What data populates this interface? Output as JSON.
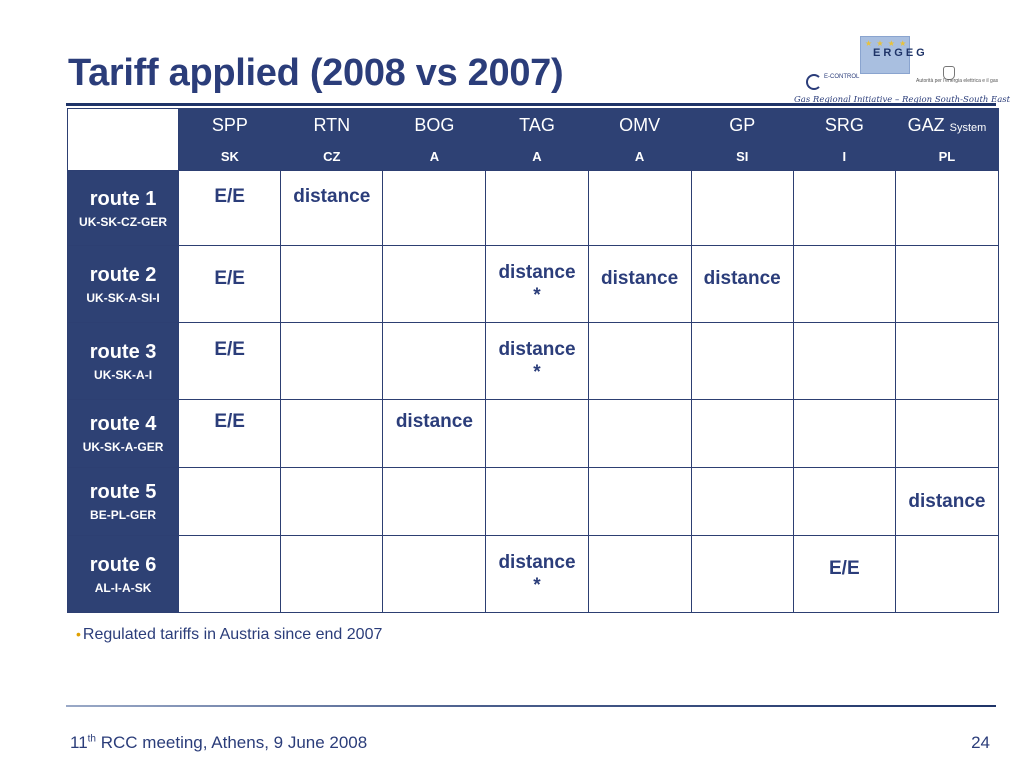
{
  "title": "Tariff applied (2008 vs 2007)",
  "logo": {
    "ergeg": "ERGEG",
    "econtrol": "E-CONTROL",
    "authority": "Autorità per l'energia elettrica e il gas",
    "gri": "Gas Regional Initiative – Region South-South East"
  },
  "columns": [
    {
      "name": "SPP",
      "country": "SK"
    },
    {
      "name": "RTN",
      "country": "CZ"
    },
    {
      "name": "BOG",
      "country": "A"
    },
    {
      "name": "TAG",
      "country": "A"
    },
    {
      "name": "OMV",
      "country": "A"
    },
    {
      "name": "GP",
      "country": "SI"
    },
    {
      "name": "SRG",
      "country": "I"
    },
    {
      "name": "GAZ",
      "suffix": "System",
      "country": "PL"
    }
  ],
  "routes": [
    {
      "name": "route 1",
      "path": "UK-SK-CZ-GER",
      "cells": [
        "E/E",
        "distance",
        "",
        "",
        "",
        "",
        "",
        ""
      ]
    },
    {
      "name": "route 2",
      "path": "UK-SK-A-SI-I",
      "cells": [
        "E/E",
        "",
        "",
        "distance\n*",
        "distance",
        "distance",
        "",
        ""
      ]
    },
    {
      "name": "route 3",
      "path": "UK-SK-A-I",
      "cells": [
        "E/E",
        "",
        "",
        "distance\n*",
        "",
        "",
        "",
        ""
      ]
    },
    {
      "name": "route 4",
      "path": "UK-SK-A-GER",
      "cells": [
        "E/E",
        "",
        "distance",
        "",
        "",
        "",
        "",
        ""
      ]
    },
    {
      "name": "route 5",
      "path": "BE-PL-GER",
      "cells": [
        "",
        "",
        "",
        "",
        "",
        "",
        "",
        "distance"
      ]
    },
    {
      "name": "route 6",
      "path": "AL-I-A-SK",
      "cells": [
        "",
        "",
        "",
        "distance\n*",
        "",
        "",
        "E/E",
        ""
      ]
    }
  ],
  "note": "Regulated tariffs in Austria since end 2007",
  "footer": {
    "meeting_prefix": "11",
    "meeting_sup": "th",
    "meeting_rest": " RCC meeting, Athens, 9 June 2008",
    "page": "24"
  },
  "colors": {
    "header_bg": "#2e4174",
    "text_blue": "#2b3d7a",
    "bullet": "#e0a000"
  }
}
